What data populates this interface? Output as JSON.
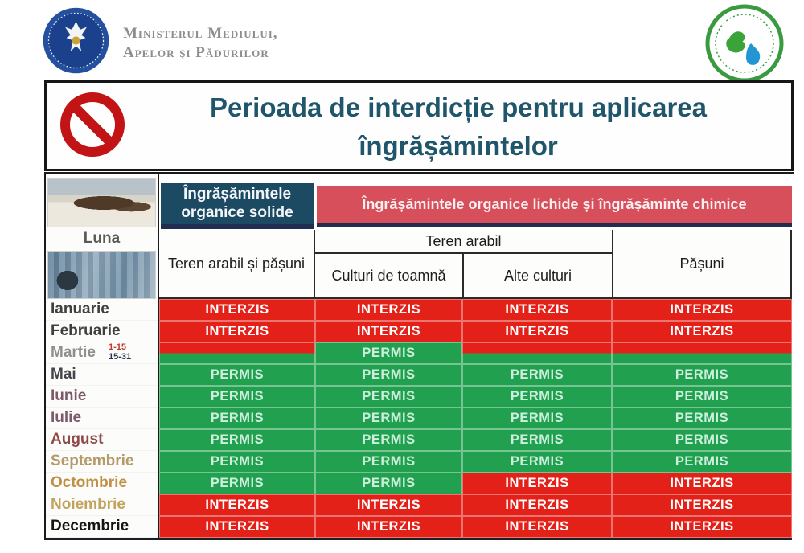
{
  "header": {
    "gov_logo": "Guvernul României",
    "ministry_line1": "Ministerul Mediului,",
    "ministry_line2": "Apelor şi Pădurilor"
  },
  "title": {
    "line1": "Perioada de interdicție pentru aplicarea",
    "line2": "îngrășămintelor"
  },
  "table": {
    "month_label": "Luna",
    "headers": {
      "solid": "Îngrășămintele organice solide",
      "liquid": "Îngrășămintele organice lichide și îngrășăminte chimice",
      "col1": "Teren arabil și pășuni",
      "arable": "Teren arabil",
      "autumn_crops": "Culturi de toamnă",
      "other_crops": "Alte culturi",
      "pasture": "Pășuni"
    },
    "value_labels": {
      "permitted": "PERMIS",
      "forbidden": "INTERZIS"
    },
    "rows": [
      {
        "month": "Ianuarie",
        "label_color": "#3f3f3f",
        "cells": [
          "INTERZIS",
          "INTERZIS",
          "INTERZIS",
          "INTERZIS"
        ]
      },
      {
        "month": "Februarie",
        "label_color": "#3f3f3f",
        "cells": [
          "INTERZIS",
          "INTERZIS",
          "INTERZIS",
          "INTERZIS"
        ]
      },
      {
        "month": "Martie",
        "label_color": "#8f8f8f",
        "sub": [
          "1-15",
          "15-31"
        ],
        "cells": [
          "SPLIT",
          "PERMIS",
          "SPLIT",
          "SPLIT"
        ]
      },
      {
        "month": "Mai",
        "label_color": "#45454b",
        "cells": [
          "PERMIS",
          "PERMIS",
          "PERMIS",
          "PERMIS"
        ]
      },
      {
        "month": "Iunie",
        "label_color": "#7c5a6a",
        "cells": [
          "PERMIS",
          "PERMIS",
          "PERMIS",
          "PERMIS"
        ]
      },
      {
        "month": "Iulie",
        "label_color": "#7c5a6a",
        "cells": [
          "PERMIS",
          "PERMIS",
          "PERMIS",
          "PERMIS"
        ]
      },
      {
        "month": "August",
        "label_color": "#8f4b47",
        "cells": [
          "PERMIS",
          "PERMIS",
          "PERMIS",
          "PERMIS"
        ]
      },
      {
        "month": "Septembrie",
        "label_color": "#b59a6c",
        "cells": [
          "PERMIS",
          "PERMIS",
          "PERMIS",
          "PERMIS"
        ]
      },
      {
        "month": "Octombrie",
        "label_color": "#c08f45",
        "cells": [
          "PERMIS",
          "PERMIS",
          "INTERZIS",
          "INTERZIS"
        ]
      },
      {
        "month": "Noiembrie",
        "label_color": "#c2a35e",
        "cells": [
          "INTERZIS",
          "INTERZIS",
          "INTERZIS",
          "INTERZIS"
        ]
      },
      {
        "month": "Decembrie",
        "label_color": "#141414",
        "cells": [
          "INTERZIS",
          "INTERZIS",
          "INTERZIS",
          "INTERZIS"
        ]
      }
    ]
  },
  "colors": {
    "forbidden_bg": "#e32119",
    "permitted_bg": "#21a14f",
    "header_solid_bg": "#1d4a63",
    "header_liquid_bg": "#d64f5b",
    "title_text": "#20566b",
    "navy_strip": "#1e2d50"
  }
}
